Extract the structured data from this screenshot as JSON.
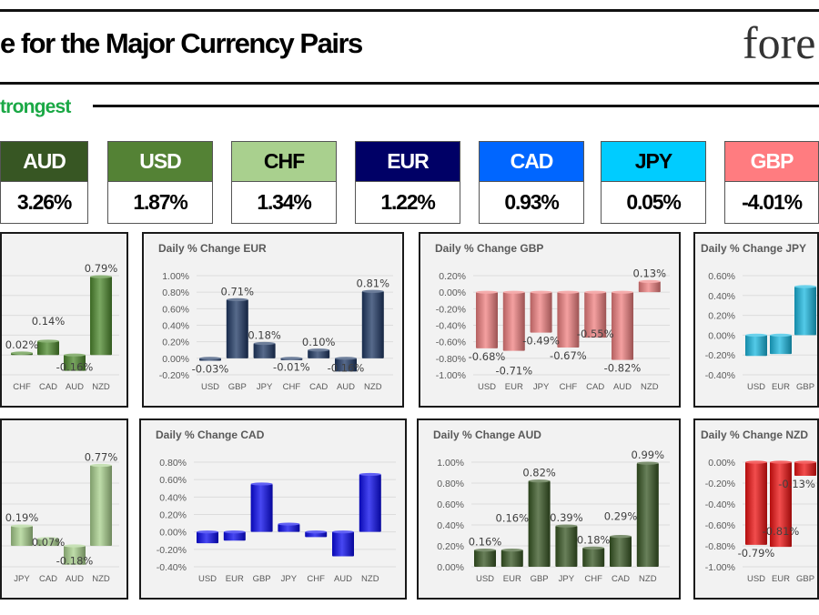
{
  "header": {
    "title": "e for the Major Currency Pairs",
    "logo": "fore"
  },
  "section": {
    "label": "trongest"
  },
  "ranking": [
    {
      "currency": "AUD",
      "change": "3.26%",
      "bg": "#375623",
      "fg": "#ffffff"
    },
    {
      "currency": "USD",
      "change": "1.87%",
      "bg": "#548235",
      "fg": "#ffffff"
    },
    {
      "currency": "CHF",
      "change": "1.34%",
      "bg": "#a9d08e",
      "fg": "#000000"
    },
    {
      "currency": "EUR",
      "change": "1.22%",
      "bg": "#000066",
      "fg": "#ffffff"
    },
    {
      "currency": "CAD",
      "change": "0.93%",
      "bg": "#0066ff",
      "fg": "#ffffff"
    },
    {
      "currency": "JPY",
      "change": "0.05%",
      "bg": "#00ccff",
      "fg": "#000000"
    },
    {
      "currency": "GBP",
      "change": "-4.01%",
      "bg": "#ff7c80",
      "fg": "#ffffff"
    }
  ],
  "chart_data": [
    {
      "id": "usd",
      "type": "bar",
      "title": "",
      "visible_part": "right",
      "color": "#4e8a2e",
      "ylim": [
        -0.2,
        0.8
      ],
      "yticks": [],
      "categories": [
        "CHF",
        "CAD",
        "AUD",
        "NZD"
      ],
      "values": [
        0.02,
        0.14,
        -0.16,
        0.79
      ],
      "labels": [
        "0.02%",
        "0.14%",
        "-0.16%",
        "0.79%"
      ]
    },
    {
      "id": "eur",
      "type": "bar",
      "title": "Daily % Change EUR",
      "visible_part": "full",
      "color": "#1f3864",
      "ylim": [
        -0.2,
        1.0
      ],
      "yticks": [
        "1.00%",
        "0.80%",
        "0.60%",
        "0.40%",
        "0.20%",
        "0.00%",
        "-0.20%"
      ],
      "categories": [
        "USD",
        "GBP",
        "JPY",
        "CHF",
        "CAD",
        "AUD",
        "NZD"
      ],
      "values": [
        -0.03,
        0.71,
        0.18,
        -0.01,
        0.1,
        -0.16,
        0.81
      ],
      "labels": [
        "-0.03%",
        "0.71%",
        "0.18%",
        "-0.01%",
        "0.10%",
        "-0.16%",
        "0.81%"
      ]
    },
    {
      "id": "gbp",
      "type": "bar",
      "title": "Daily % Change GBP",
      "visible_part": "full",
      "color": "#f08080",
      "ylim": [
        -1.0,
        0.2
      ],
      "yticks": [
        "0.20%",
        "0.00%",
        "-0.20%",
        "-0.40%",
        "-0.60%",
        "-0.80%",
        "-1.00%"
      ],
      "categories": [
        "USD",
        "EUR",
        "JPY",
        "CHF",
        "CAD",
        "AUD",
        "NZD"
      ],
      "values": [
        -0.68,
        -0.71,
        -0.49,
        -0.67,
        -0.55,
        -0.82,
        0.13
      ],
      "labels": [
        "-0.68%",
        "-0.71%",
        "-0.49%",
        "-0.67%",
        "-0.55%",
        "-0.82%",
        "0.13%"
      ]
    },
    {
      "id": "jpy",
      "type": "bar",
      "title": "Daily % Change JPY",
      "visible_part": "left",
      "color": "#1ab8e0",
      "ylim": [
        -0.4,
        0.6
      ],
      "yticks": [
        "0.60%",
        "0.40%",
        "0.20%",
        "0.00%",
        "-0.20%",
        "-0.40%"
      ],
      "categories": [
        "USD",
        "EUR",
        "GBP"
      ],
      "values": [
        -0.21,
        -0.19,
        0.49
      ],
      "labels": []
    },
    {
      "id": "chf",
      "type": "bar",
      "title": "",
      "visible_part": "right",
      "color": "#a9d18e",
      "ylim": [
        -0.2,
        0.8
      ],
      "yticks": [],
      "categories": [
        "JPY",
        "CAD",
        "AUD",
        "NZD"
      ],
      "values": [
        0.19,
        0.07,
        -0.18,
        0.77
      ],
      "labels": [
        "0.19%",
        "0.07%",
        "-0.18%",
        "0.77%"
      ]
    },
    {
      "id": "cad",
      "type": "bar",
      "title": "Daily % Change CAD",
      "visible_part": "full",
      "color": "#0a0aee",
      "ylim": [
        -0.4,
        0.8
      ],
      "yticks": [
        "0.80%",
        "0.60%",
        "0.40%",
        "0.20%",
        "0.00%",
        "-0.20%",
        "-0.40%"
      ],
      "categories": [
        "USD",
        "EUR",
        "GBP",
        "JPY",
        "CHF",
        "AUD",
        "NZD"
      ],
      "values": [
        -0.13,
        -0.1,
        0.55,
        0.09,
        -0.06,
        -0.28,
        0.66
      ],
      "labels": []
    },
    {
      "id": "aud",
      "type": "bar",
      "title": "Daily % Change AUD",
      "visible_part": "full",
      "color": "#375623",
      "ylim": [
        0.0,
        1.0
      ],
      "yticks": [
        "1.00%",
        "0.80%",
        "0.60%",
        "0.40%",
        "0.20%",
        "0.00%"
      ],
      "categories": [
        "USD",
        "EUR",
        "GBP",
        "JPY",
        "CHF",
        "CAD",
        "NZD"
      ],
      "values": [
        0.16,
        0.16,
        0.82,
        0.39,
        0.18,
        0.29,
        0.99
      ],
      "labels": [
        "0.16%",
        "0.16%",
        "0.82%",
        "0.39%",
        "0.18%",
        "0.29%",
        "0.99%"
      ]
    },
    {
      "id": "nzd",
      "type": "bar",
      "title": "Daily % Change NZD",
      "visible_part": "left",
      "color": "#ee1111",
      "ylim": [
        -1.0,
        0.0
      ],
      "yticks": [
        "0.00%",
        "-0.20%",
        "-0.40%",
        "-0.60%",
        "-0.80%",
        "-1.00%"
      ],
      "categories": [
        "USD",
        "EUR",
        "GBP"
      ],
      "values": [
        -0.79,
        -0.81,
        -0.13
      ],
      "labels": [
        "-0.79%",
        "-0.81%",
        "-0.13%"
      ]
    }
  ]
}
